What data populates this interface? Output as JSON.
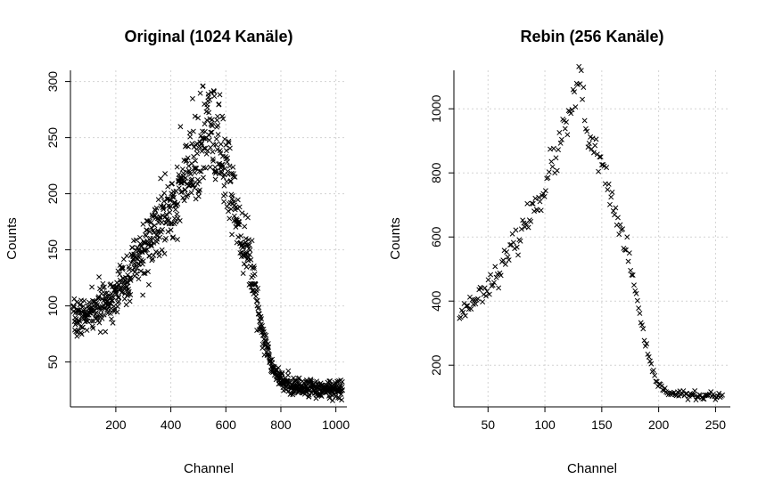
{
  "chart_data": [
    {
      "type": "scatter",
      "title": "Original (1024 Kanäle)",
      "xlabel": "Channel",
      "ylabel": "Counts",
      "xlim": [
        35,
        1040
      ],
      "ylim": [
        10,
        310
      ],
      "xticks": [
        200,
        400,
        600,
        800,
        1000
      ],
      "yticks": [
        50,
        100,
        150,
        200,
        250,
        300
      ],
      "grid": true,
      "marker": "x",
      "curve": {
        "x": [
          50,
          100,
          150,
          200,
          250,
          300,
          350,
          400,
          450,
          500,
          530,
          560,
          600,
          650,
          700,
          730,
          760,
          790,
          820,
          850,
          900,
          950,
          1000,
          1024
        ],
        "y": [
          88,
          92,
          100,
          112,
          128,
          148,
          168,
          188,
          210,
          232,
          255,
          248,
          225,
          172,
          128,
          80,
          52,
          38,
          30,
          28,
          27,
          26,
          26,
          26
        ]
      },
      "x_range": [
        45,
        1024
      ],
      "n_points": 980,
      "seed": 7,
      "noise_ratio": 0.09
    },
    {
      "type": "scatter",
      "title": "Rebin (256 Kanäle)",
      "xlabel": "Channel",
      "ylabel": "Counts",
      "xlim": [
        20,
        263
      ],
      "ylim": [
        70,
        1120
      ],
      "xticks": [
        50,
        100,
        150,
        200,
        250
      ],
      "yticks": [
        200,
        400,
        600,
        800,
        1000
      ],
      "grid": true,
      "marker": "x",
      "curve": {
        "x": [
          25,
          40,
          60,
          80,
          100,
          115,
          125,
          132,
          140,
          150,
          160,
          170,
          180,
          190,
          200,
          210,
          220,
          230,
          240,
          256
        ],
        "y": [
          360,
          410,
          490,
          620,
          760,
          900,
          1020,
          1070,
          870,
          830,
          690,
          590,
          420,
          230,
          135,
          115,
          108,
          105,
          104,
          105
        ]
      },
      "x_range": [
        25,
        256
      ],
      "n_points": 230,
      "seed": 23,
      "noise_ratio": 0.035
    }
  ]
}
